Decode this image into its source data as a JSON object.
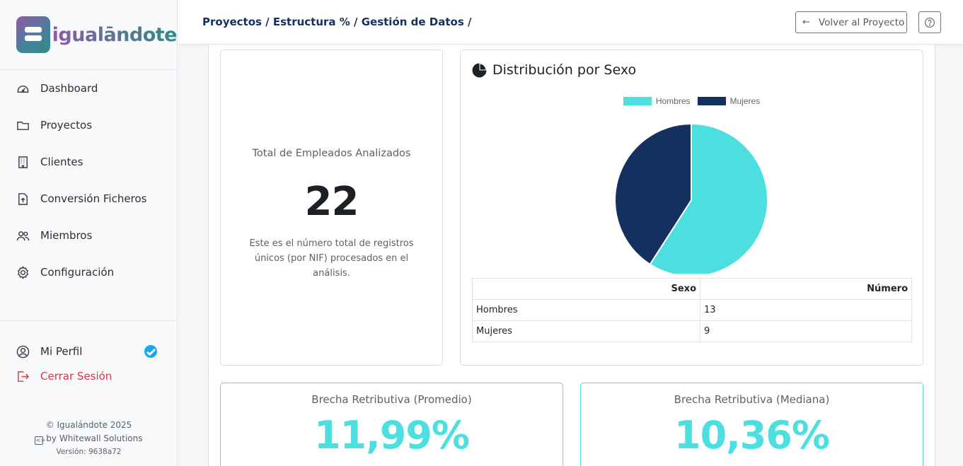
{
  "brand": {
    "name": "igualāndote"
  },
  "sidebar": {
    "items": [
      {
        "label": "Dashboard",
        "icon": "dashboard-icon"
      },
      {
        "label": "Proyectos",
        "icon": "folder-icon"
      },
      {
        "label": "Clientes",
        "icon": "building-icon"
      },
      {
        "label": "Conversión Ficheros",
        "icon": "file-upload-icon"
      },
      {
        "label": "Miembros",
        "icon": "people-icon"
      },
      {
        "label": "Configuración",
        "icon": "gear-icon"
      }
    ],
    "profile_label": "Mi Perfil",
    "logout_label": "Cerrar Sesión",
    "footer": {
      "copyright": "© Igualándote 2025",
      "by": "by Whitewall Solutions",
      "version": "Versión: 9638a72"
    }
  },
  "header": {
    "breadcrumb": "Proyectos / Estructura % / Gestión de Datos /",
    "back_label": "Volver al Proyecto",
    "help_icon": "help-circle-icon"
  },
  "total": {
    "title": "Total de Empleados Analizados",
    "value": "22",
    "description": "Este es el número total de registros únicos (por NIF) procesados en el análisis."
  },
  "distribution": {
    "title": "Distribución por Sexo",
    "table": {
      "headers": [
        "Sexo",
        "Número"
      ],
      "rows": [
        [
          "Hombres",
          "13"
        ],
        [
          "Mujeres",
          "9"
        ]
      ]
    }
  },
  "chart_data": {
    "type": "pie",
    "title": "",
    "categories": [
      "Hombres",
      "Mujeres"
    ],
    "values": [
      13,
      9
    ],
    "colors": [
      "#4ddfe0",
      "#14305f"
    ],
    "legend": "top"
  },
  "gaps": {
    "mean_label": "Brecha Retributiva (Promedio)",
    "mean_value": "11,99%",
    "median_label": "Brecha Retributiva (Mediana)",
    "median_value": "10,36%"
  },
  "colors": {
    "accent": "#4ddfe0",
    "navy": "#14305f",
    "danger": "#dc3545",
    "verified": "#1aa7ec"
  }
}
